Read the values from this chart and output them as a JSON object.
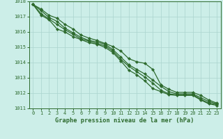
{
  "hours": [
    0,
    1,
    2,
    3,
    4,
    5,
    6,
    7,
    8,
    9,
    10,
    11,
    12,
    13,
    14,
    15,
    16,
    17,
    18,
    19,
    20,
    21,
    22,
    23
  ],
  "line1": [
    1017.8,
    1017.5,
    1017.1,
    1016.9,
    1016.5,
    1016.2,
    1015.8,
    1015.6,
    1015.45,
    1015.25,
    1015.05,
    1014.75,
    1014.25,
    1014.05,
    1013.95,
    1013.55,
    1012.55,
    1012.25,
    1012.05,
    1012.05,
    1012.05,
    1011.85,
    1011.55,
    1011.35
  ],
  "line2": [
    1017.8,
    1017.4,
    1016.95,
    1016.7,
    1016.25,
    1015.95,
    1015.65,
    1015.45,
    1015.35,
    1015.2,
    1014.85,
    1014.35,
    1013.85,
    1013.55,
    1013.25,
    1012.85,
    1012.45,
    1012.1,
    1011.95,
    1011.95,
    1011.95,
    1011.7,
    1011.45,
    1011.3
  ],
  "line3": [
    1017.8,
    1017.2,
    1016.85,
    1016.5,
    1016.15,
    1015.85,
    1015.55,
    1015.4,
    1015.25,
    1015.1,
    1014.75,
    1014.2,
    1013.75,
    1013.4,
    1013.05,
    1012.65,
    1012.2,
    1011.95,
    1011.9,
    1011.9,
    1011.9,
    1011.6,
    1011.35,
    1011.25
  ],
  "line4": [
    1017.8,
    1017.1,
    1016.8,
    1016.2,
    1016.0,
    1015.7,
    1015.5,
    1015.3,
    1015.2,
    1015.0,
    1014.65,
    1014.1,
    1013.5,
    1013.2,
    1012.8,
    1012.3,
    1012.1,
    1011.9,
    1011.85,
    1011.85,
    1011.85,
    1011.55,
    1011.3,
    1011.2
  ],
  "line_color": "#2d6a2d",
  "bg_color": "#cceee8",
  "grid_color": "#aad4ce",
  "xlabel": "Graphe pression niveau de la mer (hPa)",
  "ylim": [
    1011,
    1018
  ],
  "xlim_min": -0.5,
  "xlim_max": 23.5,
  "yticks": [
    1011,
    1012,
    1013,
    1014,
    1015,
    1016,
    1017,
    1018
  ],
  "xticks": [
    0,
    1,
    2,
    3,
    4,
    5,
    6,
    7,
    8,
    9,
    10,
    11,
    12,
    13,
    14,
    15,
    16,
    17,
    18,
    19,
    20,
    21,
    22,
    23
  ],
  "marker": "D",
  "markersize": 2.2,
  "linewidth": 0.9,
  "tick_fontsize": 5.0,
  "xlabel_fontsize": 6.2
}
